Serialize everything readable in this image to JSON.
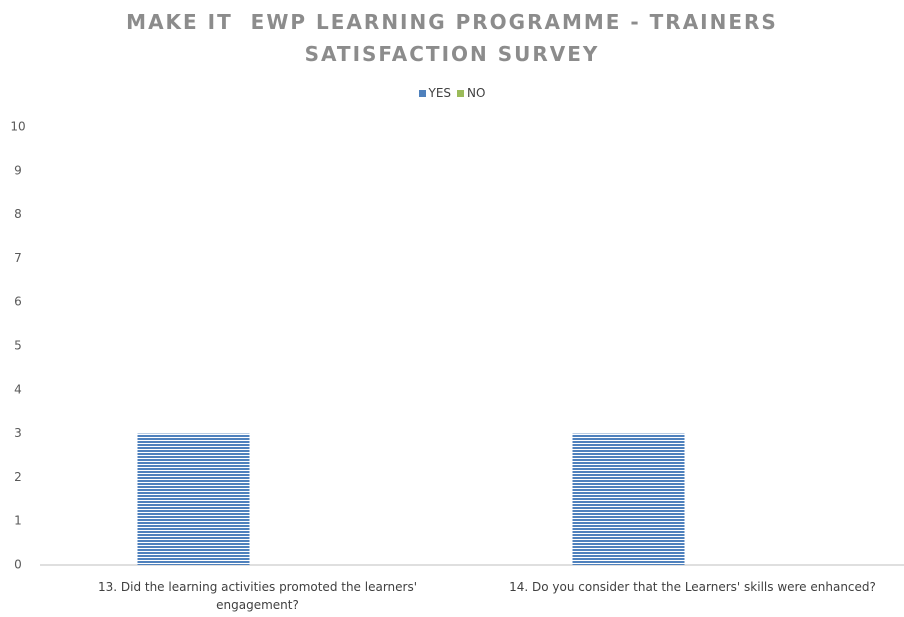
{
  "chart_data": {
    "type": "bar",
    "title": "MAKE IT  EWP LEARNING PROGRAMME - TRAINERS SATISFACTION SURVEY",
    "categories": [
      "13. Did the learning activities promoted the learners' engagement?",
      "14. Do you consider that the Learners' skills were enhanced?"
    ],
    "series": [
      {
        "name": "YES",
        "color": "#4f81bd",
        "values": [
          3,
          3
        ]
      },
      {
        "name": "NO",
        "color": "#9bbb59",
        "values": [
          0,
          0
        ]
      }
    ],
    "ylim": [
      0,
      10
    ],
    "yticks": [
      0,
      1,
      2,
      3,
      4,
      5,
      6,
      7,
      8,
      9,
      10
    ],
    "grid": false,
    "legend": "top"
  }
}
